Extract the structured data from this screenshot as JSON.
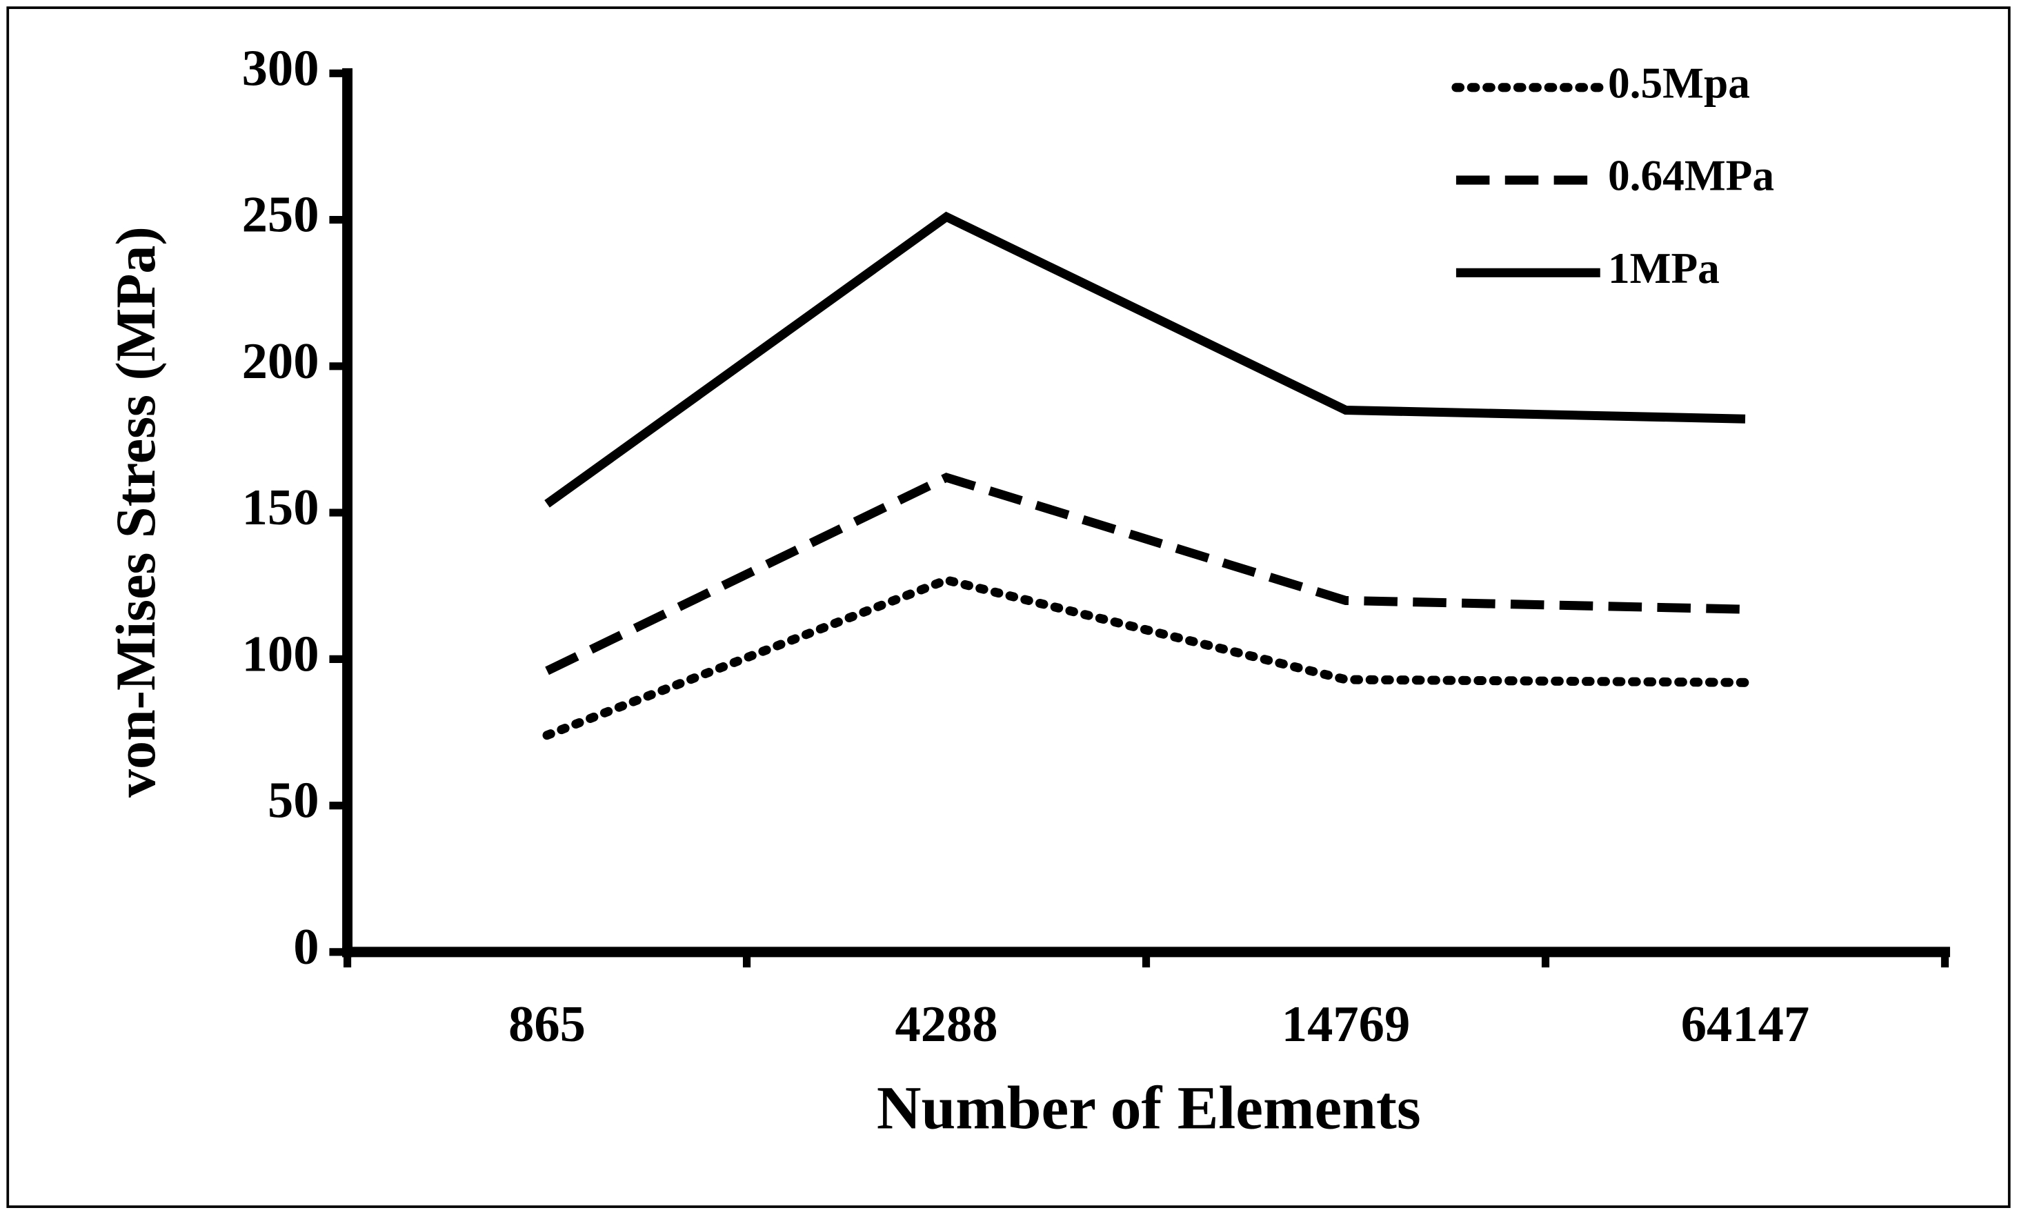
{
  "chart_data": {
    "type": "line",
    "x_label": "Number of Elements",
    "y_label": "von-Mises  Stress (MPa)",
    "categories": [
      "865",
      "4288",
      "14769",
      "64147"
    ],
    "series": [
      {
        "name": "0.5Mpa",
        "color": "#000000",
        "dash": "dotted",
        "values": [
          74,
          127,
          93,
          92
        ]
      },
      {
        "name": "0.64MPa",
        "color": "#000000",
        "dash": "dashed",
        "values": [
          96,
          162,
          120,
          117
        ]
      },
      {
        "name": "1MPa",
        "color": "#000000",
        "dash": "solid",
        "values": [
          153,
          251,
          185,
          182
        ]
      }
    ],
    "ylim": [
      0,
      300
    ],
    "yticks": [
      0,
      50,
      100,
      150,
      200,
      250,
      300
    ],
    "grid": false,
    "legend": "top-right"
  }
}
